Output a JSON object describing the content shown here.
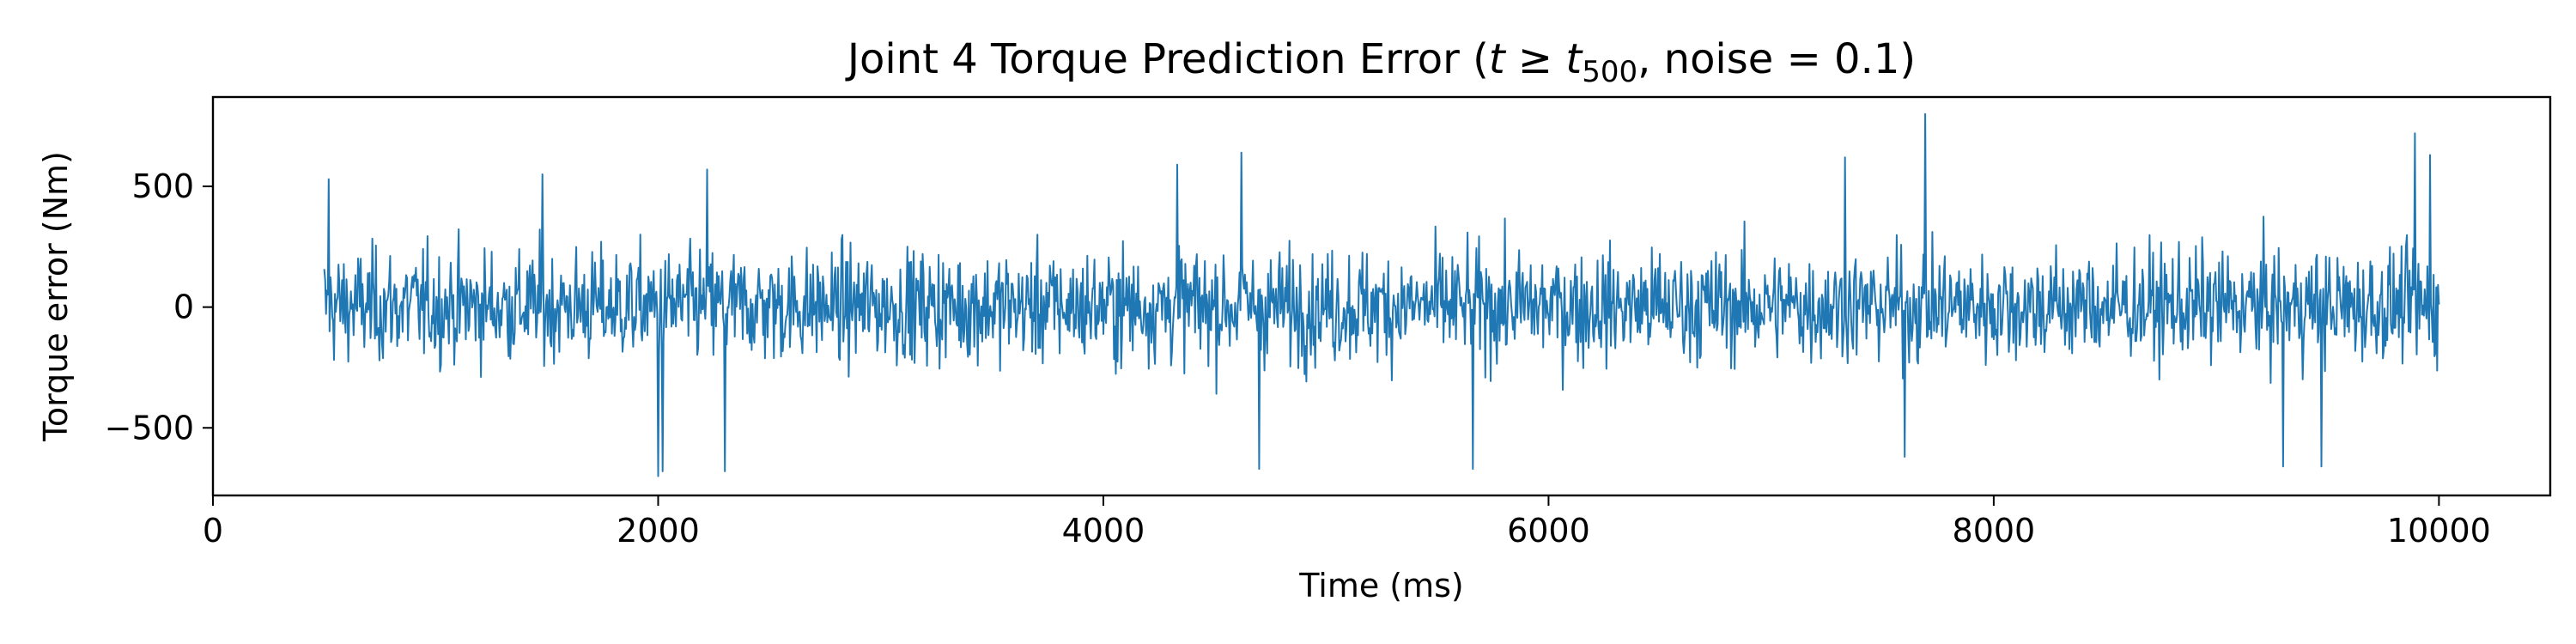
{
  "chart_data": {
    "type": "line",
    "title": "Joint 4 Torque Prediction Error (t ≥ t500, noise = 0.1)",
    "title_parts": {
      "prefix": "Joint 4 Torque Prediction Error (",
      "t": "t",
      "geq": " ≥ ",
      "t2": "t",
      "subscript": "500",
      "suffix": ", noise = 0.1)"
    },
    "xlabel": "Time (ms)",
    "ylabel": "Torque error (Nm)",
    "xlim": [
      0,
      10500
    ],
    "ylim": [
      -780,
      870
    ],
    "xticks": [
      0,
      2000,
      4000,
      6000,
      8000,
      10000
    ],
    "xtick_labels": [
      "0",
      "2000",
      "4000",
      "6000",
      "8000",
      "10000"
    ],
    "yticks": [
      -500,
      0,
      500
    ],
    "ytick_labels": [
      "−500",
      "0",
      "500"
    ],
    "grid": false,
    "color": "#1f77b4",
    "series": [
      {
        "x_start": 500,
        "x_end": 10000,
        "x_step": 1,
        "typical_envelope": [
          -320,
          330
        ],
        "notable_points": [
          {
            "x": 520,
            "y": 530
          },
          {
            "x": 1480,
            "y": 550
          },
          {
            "x": 2000,
            "y": -700
          },
          {
            "x": 2020,
            "y": -680
          },
          {
            "x": 2220,
            "y": 570
          },
          {
            "x": 2300,
            "y": -680
          },
          {
            "x": 4330,
            "y": 590
          },
          {
            "x": 4620,
            "y": 640
          },
          {
            "x": 4700,
            "y": -670
          },
          {
            "x": 5660,
            "y": -670
          },
          {
            "x": 7330,
            "y": 620
          },
          {
            "x": 7690,
            "y": 800
          },
          {
            "x": 7600,
            "y": -620
          },
          {
            "x": 9300,
            "y": -660
          },
          {
            "x": 9470,
            "y": -660
          },
          {
            "x": 9890,
            "y": 720
          },
          {
            "x": 9960,
            "y": 630
          }
        ]
      }
    ]
  }
}
